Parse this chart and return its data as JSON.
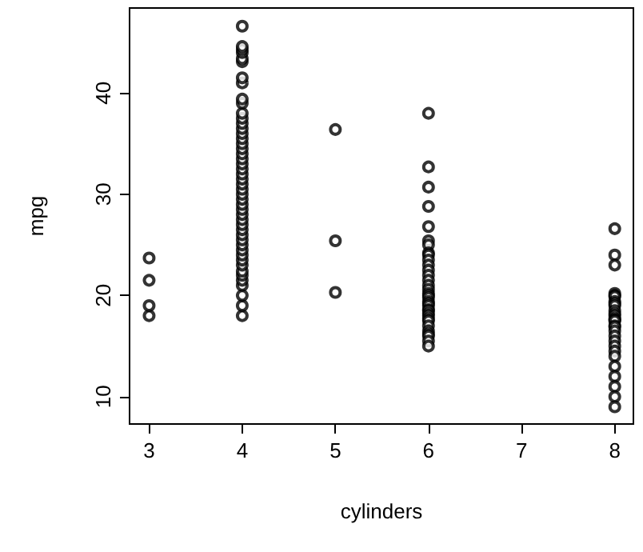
{
  "chart_data": {
    "type": "scatter",
    "xlabel": "cylinders",
    "ylabel": "mpg",
    "marker": "circle",
    "grid": false,
    "color": "#000000",
    "xlim": [
      2.79,
      8.2
    ],
    "ylim": [
      7.3,
      48.4
    ],
    "xticks": [
      3,
      4,
      5,
      6,
      7,
      8
    ],
    "yticks": [
      10,
      20,
      30,
      40
    ],
    "x": [
      3,
      3,
      3,
      3,
      4,
      4,
      4,
      4,
      4,
      4,
      4,
      4,
      4,
      4,
      4,
      4,
      4,
      4,
      4,
      4,
      4,
      4,
      4,
      4,
      4,
      4,
      4,
      4,
      4,
      4,
      4,
      4,
      4,
      4,
      4,
      4,
      4,
      4,
      4,
      4,
      4,
      4,
      4,
      4,
      4,
      4,
      4,
      4,
      4,
      4,
      4,
      4,
      5,
      5,
      5,
      6,
      6,
      6,
      6,
      6,
      6,
      6,
      6,
      6,
      6,
      6,
      6,
      6,
      6,
      6,
      6,
      6,
      6,
      6,
      6,
      6,
      6,
      6,
      6,
      6,
      6,
      6,
      6,
      6,
      6,
      6,
      6,
      6,
      6,
      8,
      8,
      8,
      8,
      8,
      8,
      8,
      8,
      8,
      8,
      8,
      8,
      8,
      8,
      8,
      8,
      8,
      8,
      8,
      8,
      8,
      8,
      8,
      8,
      8,
      8,
      8,
      8
    ],
    "values": [
      18,
      19,
      21.5,
      23.7,
      18,
      19,
      20,
      21,
      21.5,
      22,
      22.4,
      23,
      23.5,
      24,
      24.5,
      25,
      25.5,
      26,
      26.5,
      27,
      27.5,
      28,
      28.5,
      29,
      29.5,
      30,
      30.5,
      31,
      31.5,
      32,
      32.5,
      33,
      33.5,
      34,
      34.5,
      35,
      35.5,
      36,
      36.5,
      37,
      37.5,
      38,
      39,
      39.4,
      41,
      41.5,
      43.1,
      43.4,
      44,
      44.3,
      44.6,
      46.6,
      20.3,
      25.4,
      36.4,
      38,
      32.7,
      30.7,
      28.8,
      26.8,
      25.4,
      25,
      24.2,
      24,
      23.5,
      23,
      22.5,
      22,
      21.5,
      21,
      20.6,
      20.2,
      20,
      19.8,
      19.4,
      19.2,
      19,
      18.6,
      18.5,
      18.2,
      18,
      17.7,
      17.5,
      17,
      16.5,
      16.2,
      16,
      15.5,
      15,
      26.6,
      24,
      23,
      20.2,
      20,
      19.9,
      19.4,
      19.2,
      19,
      18.5,
      18.2,
      18,
      17.7,
      17.6,
      17.5,
      17,
      16.9,
      16.5,
      16,
      15.5,
      15,
      14.5,
      14,
      13,
      12,
      11,
      10,
      9
    ]
  }
}
